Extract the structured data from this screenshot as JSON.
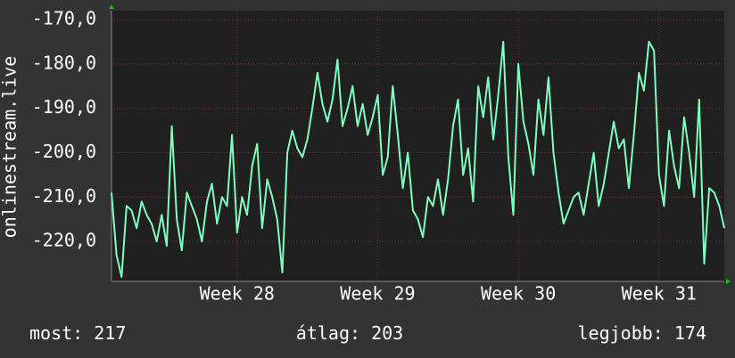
{
  "chart_data": {
    "type": "line",
    "y_label": "onlinestream.live",
    "color": "#7fffbf",
    "grid": true,
    "xlim": [
      0,
      122
    ],
    "xticks": [
      {
        "value": 25,
        "label": "Week 28"
      },
      {
        "value": 53,
        "label": "Week 29"
      },
      {
        "value": 81,
        "label": "Week 30"
      },
      {
        "value": 109,
        "label": "Week 31"
      }
    ],
    "ylim": [
      -229,
      -168
    ],
    "yticks": [
      {
        "value": -220,
        "label": "-220,0"
      },
      {
        "value": -210,
        "label": "-210,0"
      },
      {
        "value": -200,
        "label": "-200,0"
      },
      {
        "value": -190,
        "label": "-190,0"
      },
      {
        "value": -180,
        "label": "-180,0"
      },
      {
        "value": -170,
        "label": "-170,0"
      }
    ],
    "values": [
      -209,
      -223,
      -228,
      -212,
      -213,
      -217,
      -211,
      -214,
      -216,
      -220,
      -214,
      -221,
      -194,
      -215,
      -222,
      -209,
      -212,
      -215,
      -220,
      -211,
      -207,
      -216,
      -210,
      -212,
      -196,
      -218,
      -210,
      -214,
      -203,
      -198,
      -217,
      -206,
      -210,
      -215,
      -227,
      -200,
      -195,
      -199,
      -201,
      -197,
      -190,
      -182,
      -189,
      -193,
      -188,
      -179,
      -194,
      -190,
      -185,
      -194,
      -189,
      -196,
      -192,
      -187,
      -205,
      -201,
      -185,
      -196,
      -208,
      -200,
      -213,
      -215,
      -219,
      -210,
      -212,
      -206,
      -214,
      -206,
      -194,
      -188,
      -205,
      -199,
      -211,
      -185,
      -192,
      -183,
      -197,
      -187,
      -175,
      -201,
      -214,
      -180,
      -193,
      -198,
      -205,
      -188,
      -196,
      -183,
      -200,
      -209,
      -216,
      -213,
      -210,
      -209,
      -214,
      -207,
      -200,
      -212,
      -207,
      -200,
      -193,
      -199,
      -197,
      -208,
      -196,
      -182,
      -186,
      -175,
      -177,
      -205,
      -212,
      -195,
      -203,
      -208,
      -192,
      -200,
      -210,
      -188,
      -225,
      -208,
      -209,
      -212,
      -217
    ],
    "stats": [
      {
        "label": "most:",
        "value": 217
      },
      {
        "label": "átlag:",
        "value": 203
      },
      {
        "label": "legjobb:",
        "value": 174
      }
    ]
  }
}
